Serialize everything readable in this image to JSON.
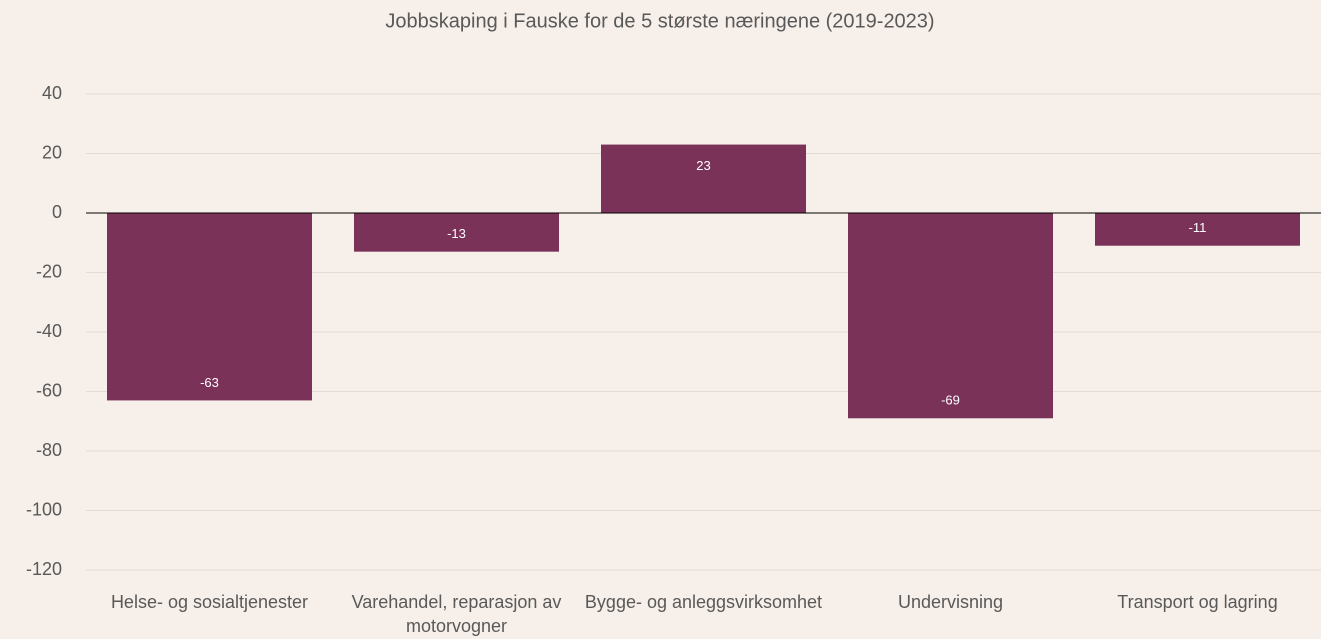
{
  "chart_data": {
    "type": "bar",
    "title": "Jobbskaping i Fauske for de 5 største næringene (2019-2023)",
    "categories": [
      "Helse- og sosialtjenester",
      "Varehandel, reparasjon av motorvogner",
      "Bygge- og anleggsvirksomhet",
      "Undervisning",
      "Transport og lagring"
    ],
    "values": [
      -63,
      -13,
      23,
      -69,
      -11
    ],
    "color": "#7b3259",
    "ylim": [
      -120,
      40
    ],
    "yticks": [
      -120,
      -100,
      -80,
      -60,
      -40,
      -20,
      0,
      20,
      40
    ],
    "grid": true
  }
}
